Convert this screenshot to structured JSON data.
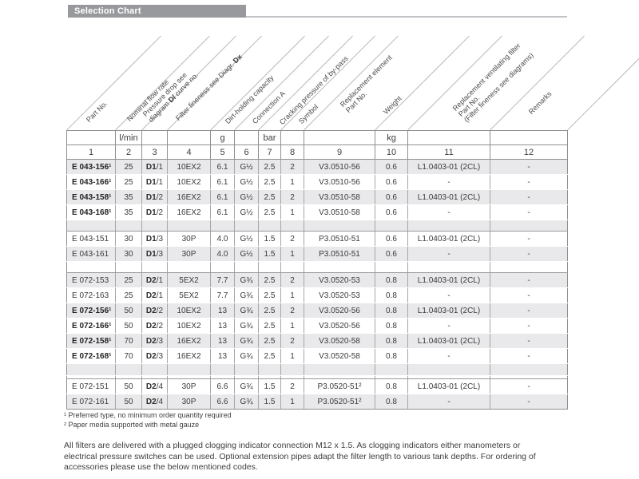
{
  "header": {
    "title": "Selection Chart"
  },
  "table": {
    "columns": [
      {
        "num": "1",
        "unit": "",
        "label": [
          [
            {
              "t": "Part No."
            }
          ]
        ]
      },
      {
        "num": "2",
        "unit": "l/min",
        "label": [
          [
            {
              "t": "Nominal flow rate"
            }
          ]
        ]
      },
      {
        "num": "3",
        "unit": "",
        "label": [
          [
            {
              "t": "Pressure drop see"
            }
          ],
          [
            {
              "t": "diagram "
            },
            {
              "t": "D/",
              "b": true
            },
            {
              "t": " curve no."
            }
          ]
        ]
      },
      {
        "num": "4",
        "unit": "",
        "label": [
          [
            {
              "t": "Filter fineness see Diagr. "
            },
            {
              "t": "Dx",
              "b": true
            }
          ]
        ]
      },
      {
        "num": "5",
        "unit": "g",
        "label": [
          [
            {
              "t": "Dirt-holding capacity"
            }
          ]
        ]
      },
      {
        "num": "6",
        "unit": "",
        "label": [
          [
            {
              "t": "Connection A"
            }
          ]
        ]
      },
      {
        "num": "7",
        "unit": "bar",
        "label": [
          [
            {
              "t": "Cracking pressure of by-pass"
            }
          ]
        ]
      },
      {
        "num": "8",
        "unit": "",
        "label": [
          [
            {
              "t": "Symbol"
            }
          ]
        ]
      },
      {
        "num": "9",
        "unit": "",
        "label": [
          [
            {
              "t": "Replacement element"
            }
          ],
          [
            {
              "t": "Part No."
            }
          ]
        ]
      },
      {
        "num": "10",
        "unit": "kg",
        "label": [
          [
            {
              "t": "Weight"
            }
          ]
        ]
      },
      {
        "num": "11",
        "unit": "",
        "label": [
          [
            {
              "t": "Replacement ventilating filter"
            }
          ],
          [
            {
              "t": "Part No."
            }
          ],
          [
            {
              "t": "(Filter fineness see diagrams)"
            }
          ]
        ]
      },
      {
        "num": "12",
        "unit": "",
        "label": [
          [
            {
              "t": "Remarks"
            }
          ]
        ]
      }
    ],
    "rows": [
      {
        "type": "data",
        "shade": true,
        "bold": true,
        "cells": [
          "E 043-156¹",
          "25",
          "D1/1",
          "10EX2",
          "6.1",
          "G½",
          "2.5",
          "2",
          "V3.0510-56",
          "0.6",
          "L1.0403-01 (2CL)",
          "-"
        ]
      },
      {
        "type": "data",
        "shade": false,
        "bold": true,
        "cells": [
          "E 043-166¹",
          "25",
          "D1/1",
          "10EX2",
          "6.1",
          "G½",
          "2.5",
          "1",
          "V3.0510-56",
          "0.6",
          "-",
          "-"
        ]
      },
      {
        "type": "data",
        "shade": true,
        "bold": true,
        "cells": [
          "E 043-158¹",
          "35",
          "D1/2",
          "16EX2",
          "6.1",
          "G½",
          "2.5",
          "2",
          "V3.0510-58",
          "0.6",
          "L1.0403-01 (2CL)",
          "-"
        ]
      },
      {
        "type": "data",
        "shade": false,
        "bold": true,
        "cells": [
          "E 043-168¹",
          "35",
          "D1/2",
          "16EX2",
          "6.1",
          "G½",
          "2.5",
          "1",
          "V3.0510-58",
          "0.6",
          "-",
          "-"
        ]
      },
      {
        "type": "spacer",
        "shade": true,
        "h": 14,
        "line": true
      },
      {
        "type": "data",
        "shade": false,
        "bold": false,
        "cells": [
          "E 043-151",
          "30",
          "D1/3",
          "30P",
          "4.0",
          "G½",
          "1.5",
          "2",
          "P3.0510-51",
          "0.6",
          "L1.0403-01 (2CL)",
          "-"
        ]
      },
      {
        "type": "data",
        "shade": true,
        "bold": false,
        "cells": [
          "E 043-161",
          "30",
          "D1/3",
          "30P",
          "4.0",
          "G½",
          "1.5",
          "1",
          "P3.0510-51",
          "0.6",
          "-",
          "-"
        ]
      },
      {
        "type": "spacer",
        "shade": false,
        "h": 14,
        "line": true
      },
      {
        "type": "data",
        "shade": true,
        "bold": false,
        "cells": [
          "E 072-153",
          "25",
          "D2/1",
          "5EX2",
          "7.7",
          "G¾",
          "2.5",
          "2",
          "V3.0520-53",
          "0.8",
          "L1.0403-01 (2CL)",
          "-"
        ]
      },
      {
        "type": "data",
        "shade": false,
        "bold": false,
        "cells": [
          "E 072-163",
          "25",
          "D2/1",
          "5EX2",
          "7.7",
          "G¾",
          "2.5",
          "1",
          "V3.0520-53",
          "0.8",
          "-",
          "-"
        ]
      },
      {
        "type": "data",
        "shade": true,
        "bold": true,
        "cells": [
          "E 072-156¹",
          "50",
          "D2/2",
          "10EX2",
          "13",
          "G¾",
          "2.5",
          "2",
          "V3.0520-56",
          "0.8",
          "L1.0403-01 (2CL)",
          "-"
        ]
      },
      {
        "type": "data",
        "shade": false,
        "bold": true,
        "cells": [
          "E 072-166¹",
          "50",
          "D2/2",
          "10EX2",
          "13",
          "G¾",
          "2.5",
          "1",
          "V3.0520-56",
          "0.8",
          "-",
          "-"
        ]
      },
      {
        "type": "data",
        "shade": true,
        "bold": true,
        "cells": [
          "E 072-158¹",
          "70",
          "D2/3",
          "16EX2",
          "13",
          "G¾",
          "2.5",
          "2",
          "V3.0520-58",
          "0.8",
          "L1.0403-01 (2CL)",
          "-"
        ]
      },
      {
        "type": "data",
        "shade": false,
        "bold": true,
        "cells": [
          "E 072-168¹",
          "70",
          "D2/3",
          "16EX2",
          "13",
          "G¾",
          "2.5",
          "1",
          "V3.0520-58",
          "0.8",
          "-",
          "-"
        ]
      },
      {
        "type": "spacer",
        "shade": true,
        "h": 15,
        "line": false
      },
      {
        "type": "spacer",
        "shade": false,
        "h": 4,
        "line": true
      },
      {
        "type": "data",
        "shade": false,
        "bold": false,
        "cells": [
          "E 072-151",
          "50",
          "D2/4",
          "30P",
          "6.6",
          "G¾",
          "1.5",
          "2",
          "P3.0520-51²",
          "0.8",
          "L1.0403-01 (2CL)",
          "-"
        ]
      },
      {
        "type": "data",
        "shade": true,
        "bold": false,
        "cells": [
          "E 072-161",
          "50",
          "D2/4",
          "30P",
          "6.6",
          "G¾",
          "1.5",
          "1",
          "P3.0520-51²",
          "0.8",
          "-",
          "-"
        ]
      }
    ]
  },
  "footnotes": [
    "¹ Preferred type, no minimum order quantity required",
    "² Paper media supported with metal gauze"
  ],
  "paragraph": {
    "lines": [
      "All filters are delivered with a plugged clogging indicator connection M12 x 1.5. As clogging indicators either manometers or",
      "electrical pressure switches can be used. Optional extension pipes adapt the filter length to various tank depths. For ordering of",
      "accessories please use the below mentioned codes."
    ]
  },
  "colors": {
    "title_bar_bg": "#98999d",
    "row_shade": "#e9e9eb",
    "border": "#8f8f8f",
    "diagonal": "#bababa"
  }
}
